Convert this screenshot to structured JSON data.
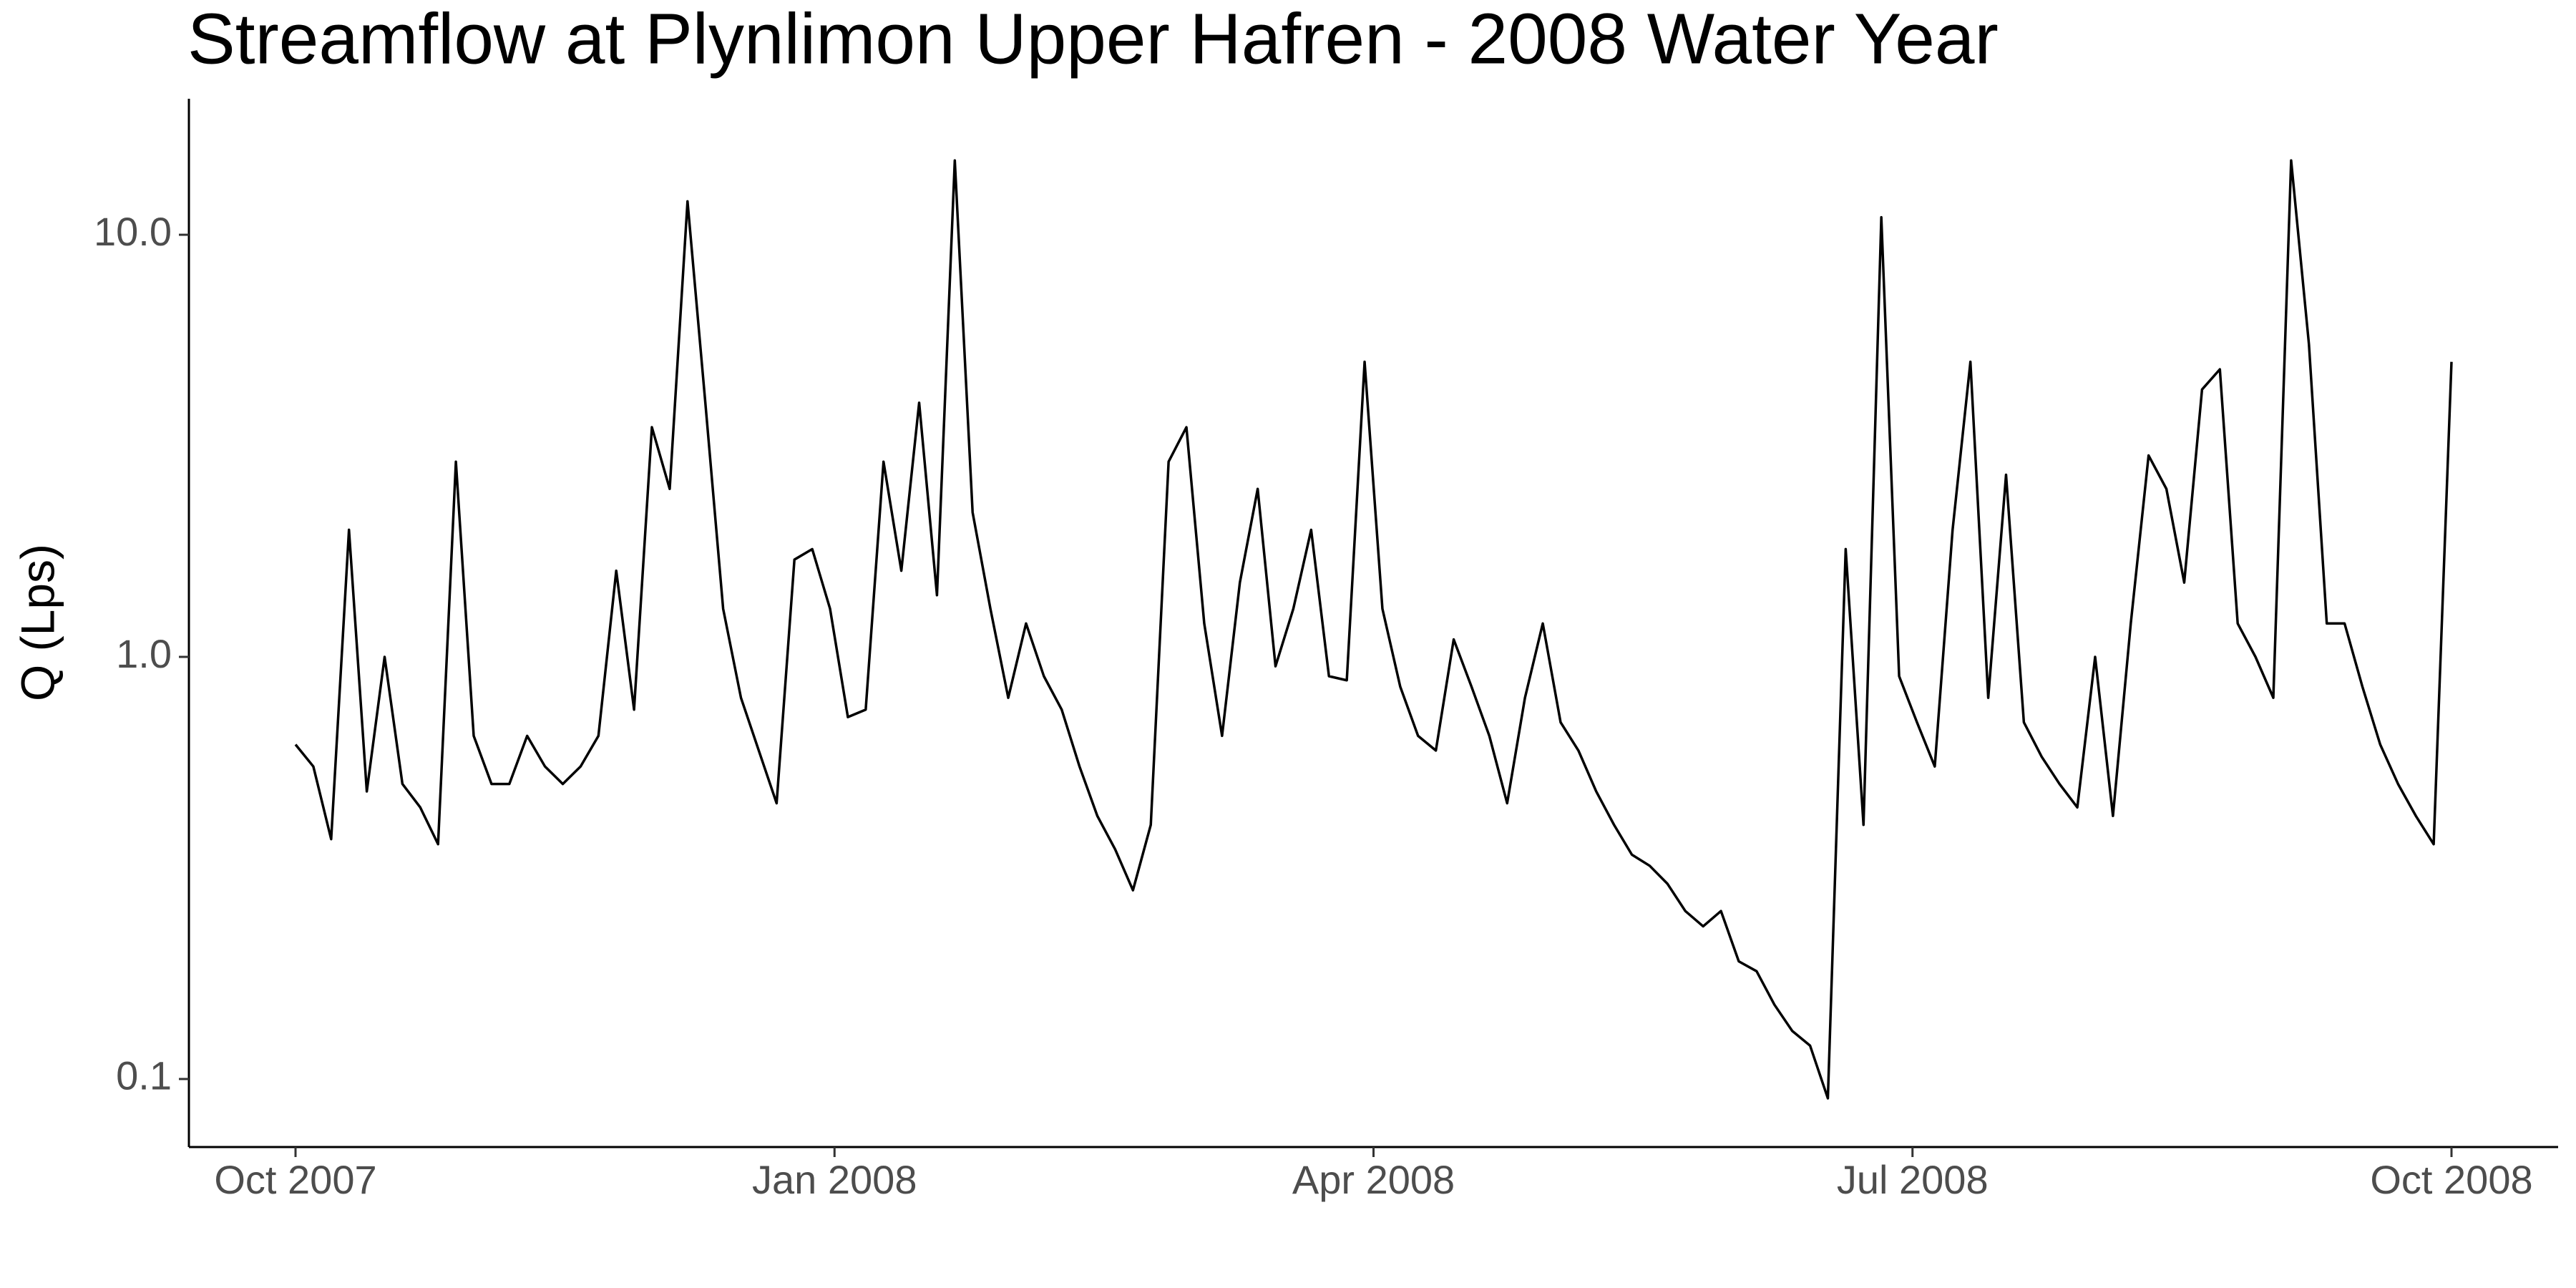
{
  "chart_data": {
    "type": "line",
    "title": "Streamflow at Plynlimon Upper Hafren - 2008 Water Year",
    "y_label": "Q (Lps)",
    "log_y": true,
    "grid": false,
    "xticks": [
      "Oct 2007",
      "Jan 2008",
      "Apr 2008",
      "Jul 2008",
      "Oct 2008"
    ],
    "ylim": [
      0.069,
      21
    ],
    "yticks": [
      0.1,
      {
        "value": 1,
        "label": "1.0"
      },
      {
        "value": 10,
        "label": "10.0"
      }
    ],
    "series": [
      {
        "color": "#000000",
        "values": [
          0.62,
          0.55,
          0.37,
          2.0,
          0.48,
          1.0,
          0.5,
          0.44,
          0.36,
          2.9,
          0.65,
          0.5,
          0.5,
          0.65,
          0.55,
          0.5,
          0.55,
          0.65,
          1.6,
          0.75,
          3.5,
          2.5,
          12,
          4.0,
          1.3,
          0.8,
          0.6,
          0.45,
          1.7,
          1.8,
          1.3,
          0.72,
          0.75,
          2.9,
          1.6,
          4.0,
          1.4,
          15,
          2.2,
          1.3,
          0.8,
          1.2,
          0.9,
          0.75,
          0.55,
          0.42,
          0.35,
          0.28,
          0.4,
          2.9,
          3.5,
          1.2,
          0.65,
          1.5,
          2.5,
          0.95,
          1.3,
          2.0,
          0.9,
          0.88,
          5.0,
          1.3,
          0.85,
          0.65,
          0.6,
          1.1,
          0.85,
          0.65,
          0.45,
          0.8,
          1.2,
          0.7,
          0.6,
          0.48,
          0.4,
          0.34,
          0.32,
          0.29,
          0.25,
          0.23,
          0.25,
          0.19,
          0.18,
          0.15,
          0.13,
          0.12,
          0.09,
          1.8,
          0.4,
          11,
          0.9,
          0.7,
          0.55,
          2.0,
          5.0,
          0.8,
          2.7,
          0.7,
          0.58,
          0.5,
          0.44,
          1.0,
          0.42,
          1.2,
          3.0,
          2.5,
          1.5,
          4.3,
          4.8,
          1.2,
          1.0,
          0.8,
          15,
          5.5,
          1.2,
          1.2,
          0.85,
          0.62,
          0.5,
          0.42,
          0.36,
          5.0
        ]
      }
    ]
  }
}
